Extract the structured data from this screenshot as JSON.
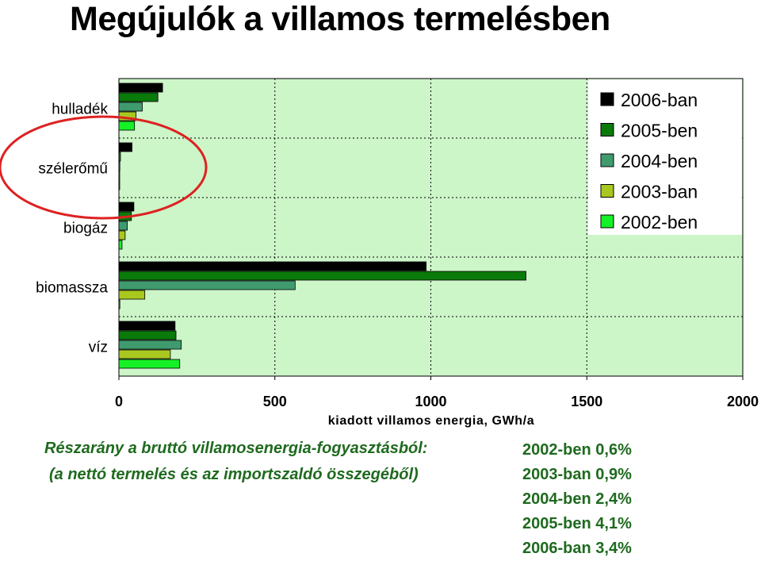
{
  "title": "Megújulók a villamos termelésben",
  "chart_data": {
    "type": "bar",
    "orientation": "horizontal",
    "categories": [
      "hulladék",
      "szélerőmű",
      "biogáz",
      "biomassza",
      "víz"
    ],
    "series": [
      {
        "name": "2006-ban",
        "color": "#000000",
        "values": [
          140,
          42,
          48,
          985,
          180
        ]
      },
      {
        "name": "2005-ben",
        "color": "#0a7a0a",
        "values": [
          125,
          5,
          40,
          1305,
          183
        ]
      },
      {
        "name": "2004-ben",
        "color": "#3f9b6e",
        "values": [
          75,
          3,
          27,
          565,
          200
        ]
      },
      {
        "name": "2003-ban",
        "color": "#a8c820",
        "values": [
          55,
          2,
          20,
          83,
          165
        ]
      },
      {
        "name": "2002-ben",
        "color": "#16f026",
        "values": [
          50,
          1,
          10,
          3,
          195
        ]
      }
    ],
    "xlabel": "kiadott villamos energia, GWh/a",
    "ylabel": "",
    "xlim": [
      0,
      2000
    ],
    "xticks": [
      "0",
      "500",
      "1000",
      "1500",
      "2000"
    ],
    "grid": true,
    "legend_position": "top-right",
    "background": "#ccf5c8"
  },
  "notes": {
    "line1": "Részarány a bruttó villamosenergia-fogyasztásból:",
    "line2": "(a nettó termelés és az importszaldó összegéből)"
  },
  "shares": [
    "2002-ben 0,6%",
    "2003-ban 0,9%",
    "2004-ben 2,4%",
    "2005-ben 4,1%",
    "2006-ban 3,4%"
  ],
  "highlight_color": "#dd2222"
}
